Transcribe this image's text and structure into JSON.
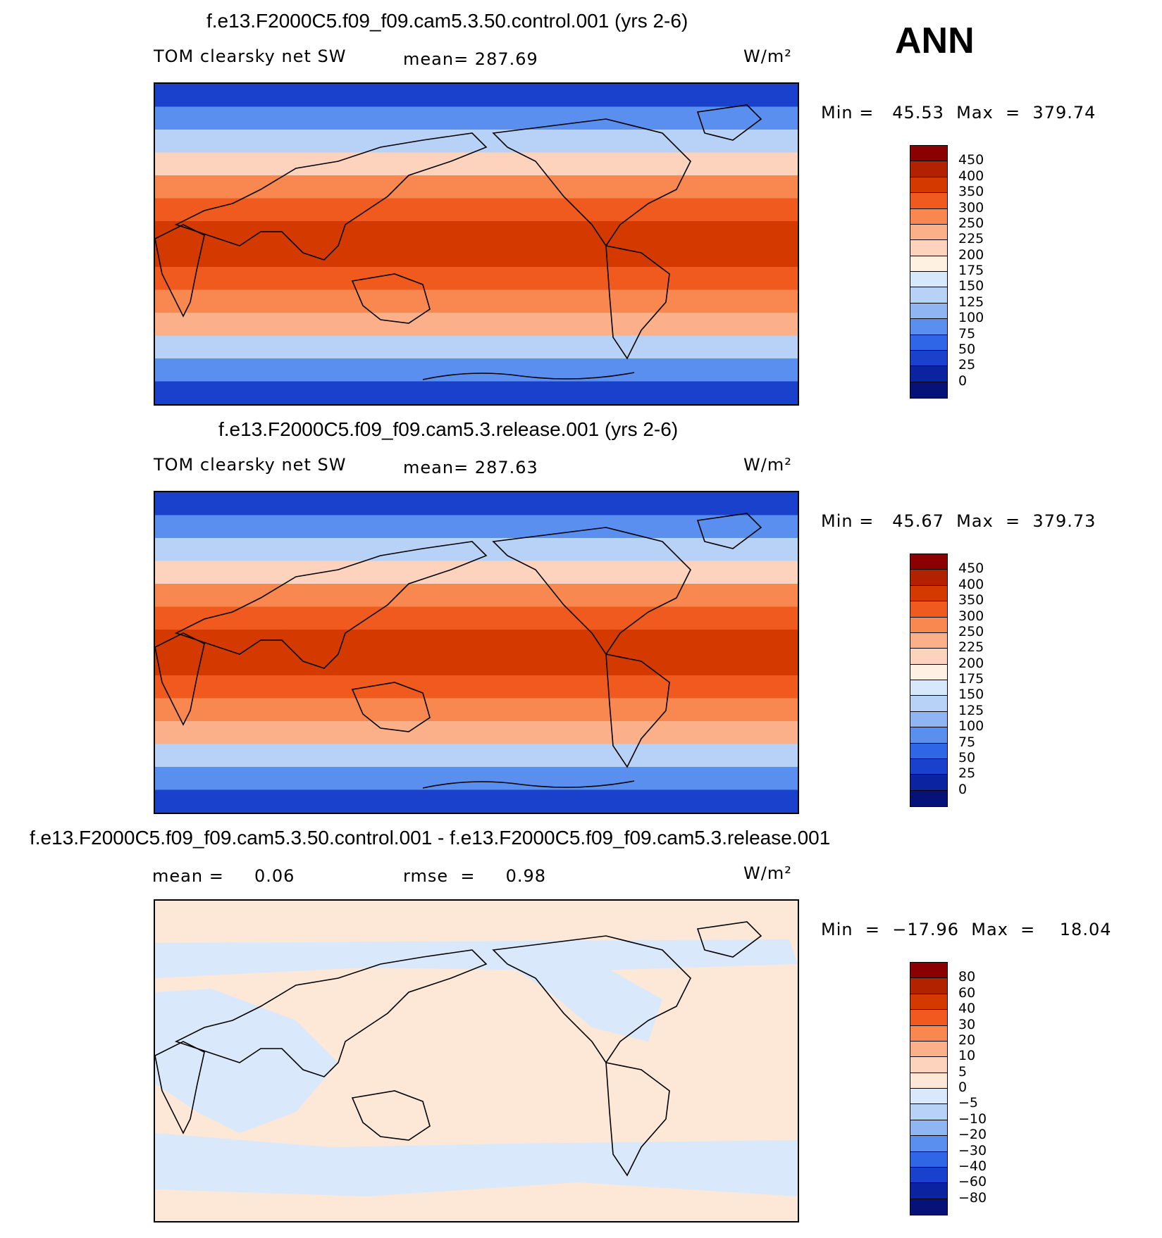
{
  "season": "ANN",
  "panels": [
    {
      "title": "f.e13.F2000C5.f09_f09.cam5.3.50.control.001 (yrs 2-6)",
      "variable": "TOM clearsky net SW",
      "stat1": "mean= 287.69",
      "stat2": "",
      "units": "W/m²",
      "minmax": "Min =   45.53  Max  =  379.74",
      "kind": "field"
    },
    {
      "title": "f.e13.F2000C5.f09_f09.cam5.3.release.001 (yrs 2-6)",
      "variable": "TOM clearsky net SW",
      "stat1": "mean= 287.63",
      "stat2": "",
      "units": "W/m²",
      "minmax": "Min =   45.67  Max  =  379.73",
      "kind": "field"
    },
    {
      "title": "f.e13.F2000C5.f09_f09.cam5.3.50.control.001 - f.e13.F2000C5.f09_f09.cam5.3.release.001",
      "variable": "mean =     0.06",
      "stat1": "rmse  =     0.98",
      "stat2": "",
      "units": "W/m²",
      "minmax": "Min  =  −17.96  Max  =    18.04",
      "kind": "diff"
    }
  ],
  "colorbars": {
    "field": {
      "labels": [
        "450",
        "400",
        "350",
        "300",
        "250",
        "225",
        "200",
        "175",
        "150",
        "125",
        "100",
        "75",
        "50",
        "25",
        "0"
      ],
      "colors": [
        "#8b0000",
        "#b22200",
        "#d43a00",
        "#f05a1e",
        "#f98850",
        "#fcb08a",
        "#fdd3bd",
        "#fef0e2",
        "#d6e8fa",
        "#b7d2f6",
        "#8fb5f3",
        "#5a8ff0",
        "#2f66e6",
        "#1a41cc",
        "#0c23a1",
        "#061278"
      ]
    },
    "diff": {
      "labels": [
        "80",
        "60",
        "40",
        "30",
        "20",
        "10",
        "5",
        "0",
        "−5",
        "−10",
        "−20",
        "−30",
        "−40",
        "−60",
        "−80"
      ],
      "colors": [
        "#8b0000",
        "#b22200",
        "#d43a00",
        "#f05a1e",
        "#f98850",
        "#fcb08a",
        "#fdd3bd",
        "#fde8d8",
        "#d9e8fb",
        "#b7d2f6",
        "#8fb5f3",
        "#5a8ff0",
        "#2f66e6",
        "#1a41cc",
        "#0c23a1",
        "#061278"
      ]
    }
  },
  "legend_colors": {
    "field_bands": [
      "#1a41cc",
      "#5a8ff0",
      "#b7d2f6",
      "#fdd3bd",
      "#f98850",
      "#f05a1e",
      "#d43a00",
      "#d43a00",
      "#f05a1e",
      "#f98850",
      "#fcb08a",
      "#b7d2f6",
      "#5a8ff0",
      "#1a41cc"
    ],
    "diff_bg": "#fde8d8",
    "diff_blue": "#d9e8fb"
  }
}
